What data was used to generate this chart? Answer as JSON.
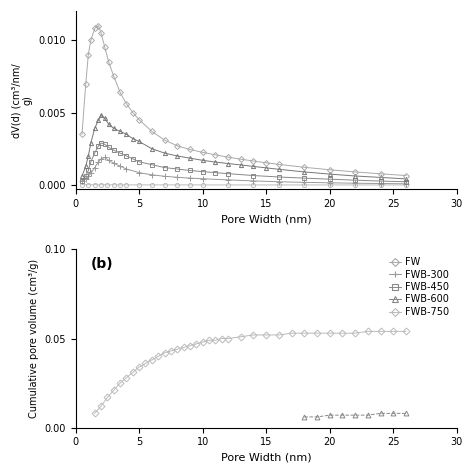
{
  "panel_a": {
    "xlabel": "Pore Width (nm)",
    "ylabel": "dV(d) (cm³/nm/\ng)",
    "xlim": [
      0,
      30
    ],
    "ylim": [
      -0.0003,
      0.012
    ],
    "yticks": [
      0.0,
      0.005,
      0.01
    ],
    "series": {
      "FW": {
        "x": [
          0.5,
          1.0,
          1.5,
          2.0,
          2.5,
          3.0,
          3.5,
          4.0,
          5.0,
          6.0,
          7.0,
          8.0,
          9.0,
          10.0,
          12.0,
          14.0,
          16.0,
          18.0,
          20.0,
          22.0,
          24.0,
          26.0
        ],
        "y": [
          2e-05,
          1.8e-05,
          1.5e-05,
          1.2e-05,
          1e-05,
          8e-06,
          7e-06,
          6e-06,
          5e-06,
          5e-06,
          5e-06,
          4e-06,
          4e-06,
          3e-06,
          3e-06,
          2e-06,
          2e-06,
          2e-06,
          2e-06,
          2e-06,
          1e-06,
          1e-06
        ],
        "marker": "o",
        "color": "#bbbbbb",
        "markersize": 3
      },
      "FWB-300": {
        "x": [
          0.5,
          0.8,
          1.0,
          1.2,
          1.5,
          1.8,
          2.0,
          2.3,
          2.6,
          3.0,
          3.5,
          4.0,
          5.0,
          6.0,
          7.0,
          8.0,
          9.0,
          10.0,
          12.0,
          14.0,
          16.0,
          18.0,
          20.0,
          22.0,
          24.0,
          26.0
        ],
        "y": [
          0.00025,
          0.0004,
          0.0006,
          0.0008,
          0.0012,
          0.0016,
          0.0018,
          0.0019,
          0.0017,
          0.0015,
          0.0013,
          0.0011,
          0.00085,
          0.0007,
          0.0006,
          0.00053,
          0.00047,
          0.00043,
          0.00035,
          0.00028,
          0.00022,
          0.00018,
          0.00015,
          0.00012,
          0.0001,
          8e-05
        ],
        "marker": "+",
        "color": "#999999",
        "markersize": 5
      },
      "FWB-450": {
        "x": [
          0.5,
          0.8,
          1.0,
          1.2,
          1.5,
          1.8,
          2.0,
          2.3,
          2.6,
          3.0,
          3.5,
          4.0,
          4.5,
          5.0,
          6.0,
          7.0,
          8.0,
          9.0,
          10.0,
          11.0,
          12.0,
          14.0,
          16.0,
          18.0,
          20.0,
          22.0,
          24.0,
          26.0
        ],
        "y": [
          0.0003,
          0.0006,
          0.001,
          0.0016,
          0.0022,
          0.0027,
          0.0029,
          0.0028,
          0.0026,
          0.0024,
          0.0022,
          0.002,
          0.0018,
          0.0016,
          0.0014,
          0.0012,
          0.0011,
          0.001,
          0.00092,
          0.00085,
          0.00078,
          0.00065,
          0.00055,
          0.00047,
          0.0004,
          0.00033,
          0.00027,
          0.00022
        ],
        "marker": "s",
        "color": "#888888",
        "markersize": 3
      },
      "FWB-600": {
        "x": [
          0.5,
          0.8,
          1.0,
          1.2,
          1.5,
          1.8,
          2.0,
          2.3,
          2.6,
          3.0,
          3.5,
          4.0,
          4.5,
          5.0,
          6.0,
          7.0,
          8.0,
          9.0,
          10.0,
          11.0,
          12.0,
          13.0,
          14.0,
          15.0,
          16.0,
          18.0,
          20.0,
          22.0,
          24.0,
          26.0
        ],
        "y": [
          0.0006,
          0.0013,
          0.002,
          0.0029,
          0.0039,
          0.0045,
          0.0048,
          0.0046,
          0.0042,
          0.0039,
          0.0037,
          0.0035,
          0.0032,
          0.003,
          0.0025,
          0.0022,
          0.002,
          0.00185,
          0.0017,
          0.00158,
          0.00148,
          0.00138,
          0.00128,
          0.00118,
          0.00108,
          0.0009,
          0.00075,
          0.00062,
          0.00052,
          0.00042
        ],
        "marker": "^",
        "color": "#777777",
        "markersize": 3
      },
      "FWB-750": {
        "x": [
          0.5,
          0.8,
          1.0,
          1.2,
          1.5,
          1.8,
          2.0,
          2.3,
          2.6,
          3.0,
          3.5,
          4.0,
          4.5,
          5.0,
          6.0,
          7.0,
          8.0,
          9.0,
          10.0,
          11.0,
          12.0,
          13.0,
          14.0,
          15.0,
          16.0,
          18.0,
          20.0,
          22.0,
          24.0,
          26.0
        ],
        "y": [
          0.0035,
          0.007,
          0.009,
          0.01,
          0.0108,
          0.011,
          0.0105,
          0.0095,
          0.0085,
          0.0075,
          0.0064,
          0.0056,
          0.005,
          0.0045,
          0.0037,
          0.0031,
          0.0027,
          0.00245,
          0.00225,
          0.00208,
          0.00192,
          0.00178,
          0.00165,
          0.00153,
          0.00142,
          0.00122,
          0.00105,
          0.0009,
          0.00077,
          0.00065
        ],
        "marker": "D",
        "color": "#aaaaaa",
        "markersize": 3
      }
    }
  },
  "panel_b": {
    "xlabel": "Pore Width (nm)",
    "ylabel": "Cumulative pore volume (cm³/g)",
    "xlim": [
      0,
      30
    ],
    "ylim": [
      0,
      0.1
    ],
    "yticks": [
      0.0,
      0.05,
      0.1
    ],
    "legend_labels": [
      "FW",
      "FWB-300",
      "FWB-450",
      "FWB-600",
      "FWB-750"
    ],
    "legend_markers": [
      "D",
      "+",
      "s",
      "^",
      "D"
    ],
    "legend_marker_sizes": [
      4,
      6,
      3,
      3,
      4
    ],
    "legend_colors": [
      "#aaaaaa",
      "#999999",
      "#aaaaaa",
      "#888888",
      "#bbbbbb"
    ],
    "series": {
      "FWB-750_cum": {
        "x": [
          1.5,
          2.0,
          2.5,
          3.0,
          3.5,
          4.0,
          4.5,
          5.0,
          5.5,
          6.0,
          6.5,
          7.0,
          7.5,
          8.0,
          8.5,
          9.0,
          9.5,
          10.0,
          10.5,
          11.0,
          11.5,
          12.0,
          13.0,
          14.0,
          15.0,
          16.0,
          17.0,
          18.0,
          19.0,
          20.0,
          21.0,
          22.0,
          23.0,
          24.0,
          25.0,
          26.0
        ],
        "y": [
          0.008,
          0.012,
          0.017,
          0.021,
          0.025,
          0.028,
          0.031,
          0.034,
          0.036,
          0.038,
          0.04,
          0.042,
          0.043,
          0.044,
          0.045,
          0.046,
          0.047,
          0.048,
          0.049,
          0.049,
          0.05,
          0.05,
          0.051,
          0.052,
          0.052,
          0.052,
          0.053,
          0.053,
          0.053,
          0.053,
          0.053,
          0.053,
          0.054,
          0.054,
          0.054,
          0.054
        ],
        "marker": "D",
        "color": "#bbbbbb",
        "markersize": 3.5
      },
      "FWB-600_cum": {
        "x": [
          18.0,
          19.0,
          20.0,
          21.0,
          22.0,
          23.0,
          24.0,
          25.0,
          26.0
        ],
        "y": [
          0.006,
          0.006,
          0.007,
          0.007,
          0.007,
          0.007,
          0.008,
          0.008,
          0.008
        ],
        "marker": "^",
        "color": "#888888",
        "markersize": 3.5
      }
    }
  }
}
